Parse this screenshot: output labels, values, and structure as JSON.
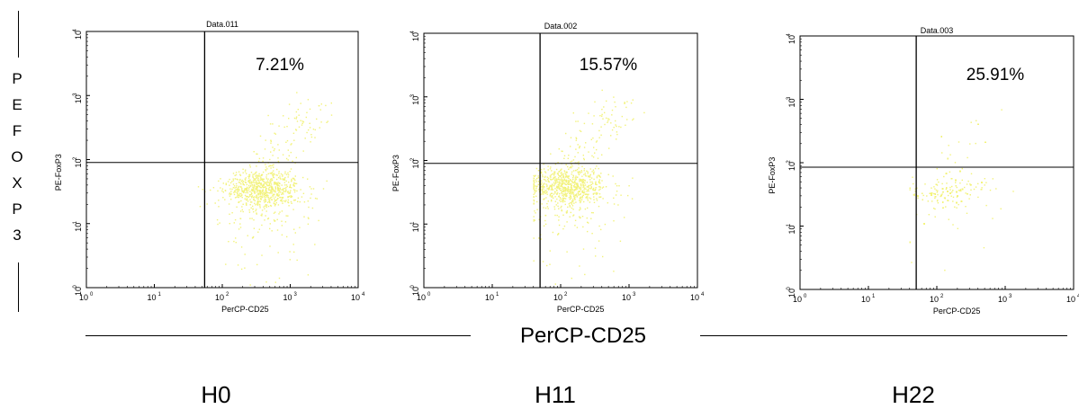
{
  "y_axis_title_letters": [
    "P",
    "E",
    "F",
    "O",
    "X",
    "P",
    "3"
  ],
  "x_axis_title": "PerCP-CD25",
  "groups": [
    "H0",
    "H11",
    "H22"
  ],
  "colors": {
    "dots": "#f2f27a",
    "axis": "#000000",
    "background": "#ffffff"
  },
  "chart_data": [
    {
      "type": "scatter",
      "title": "Data.011",
      "xlabel": "PerCP-CD25",
      "ylabel": "PE-FoxP3",
      "x_scale": "log",
      "y_scale": "log",
      "xlim": [
        1,
        10000
      ],
      "ylim": [
        1,
        10000
      ],
      "x_ticks": [
        "10",
        "10",
        "10",
        "10",
        "10"
      ],
      "x_tick_exponents": [
        "0",
        "1",
        "2",
        "3",
        "4"
      ],
      "y_ticks": [
        "10",
        "10",
        "10",
        "10",
        "10"
      ],
      "y_tick_exponents": [
        "0",
        "1",
        "2",
        "3",
        "4"
      ],
      "gate_x": 55,
      "gate_y": 90,
      "upper_right_percent": "7.21%",
      "population_center": [
        400,
        35
      ],
      "grid": false
    },
    {
      "type": "scatter",
      "title": "Data.002",
      "xlabel": "PerCP-CD25",
      "ylabel": "PE-FoxP3",
      "x_scale": "log",
      "y_scale": "log",
      "xlim": [
        1,
        10000
      ],
      "ylim": [
        1,
        10000
      ],
      "x_ticks": [
        "10",
        "10",
        "10",
        "10",
        "10"
      ],
      "x_tick_exponents": [
        "0",
        "1",
        "2",
        "3",
        "4"
      ],
      "y_ticks": [
        "10",
        "10",
        "10",
        "10",
        "10"
      ],
      "y_tick_exponents": [
        "0",
        "1",
        "2",
        "3",
        "4"
      ],
      "gate_x": 50,
      "gate_y": 90,
      "upper_right_percent": "15.57%",
      "population_center": [
        130,
        40
      ],
      "grid": false
    },
    {
      "type": "scatter",
      "title": "Data.003",
      "xlabel": "PerCP-CD25",
      "ylabel": "PE-FoxP3",
      "x_scale": "log",
      "y_scale": "log",
      "xlim": [
        1,
        10000
      ],
      "ylim": [
        1,
        10000
      ],
      "x_ticks": [
        "10",
        "10",
        "10",
        "10",
        "10"
      ],
      "x_tick_exponents": [
        "0",
        "1",
        "2",
        "3",
        "4"
      ],
      "y_ticks": [
        "10",
        "10",
        "10",
        "10",
        "10"
      ],
      "y_tick_exponents": [
        "0",
        "1",
        "2",
        "3",
        "4"
      ],
      "gate_x": 50,
      "gate_y": 85,
      "upper_right_percent": "25.91%",
      "population_center": [
        150,
        40
      ],
      "grid": false
    }
  ]
}
